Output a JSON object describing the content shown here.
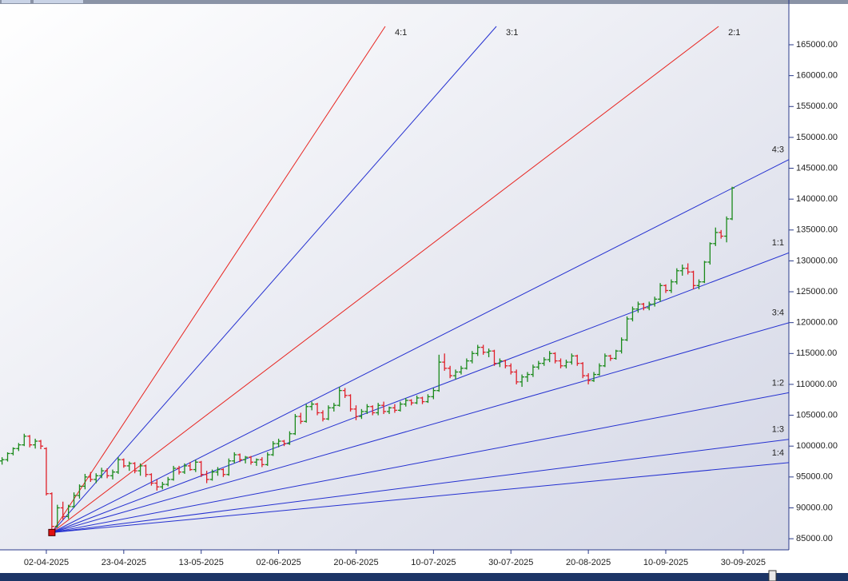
{
  "chart_data": {
    "type": "ohlc",
    "categories": [
      null,
      null,
      null,
      null,
      null,
      null,
      null,
      null,
      "02-04-2025",
      null,
      null,
      null,
      null,
      null,
      null,
      null,
      null,
      null,
      null,
      null,
      null,
      null,
      "23-04-2025",
      null,
      null,
      null,
      null,
      null,
      null,
      null,
      null,
      null,
      null,
      null,
      null,
      null,
      "13-05-2025",
      null,
      null,
      null,
      null,
      null,
      null,
      null,
      null,
      null,
      null,
      null,
      null,
      null,
      "02-06-2025",
      null,
      null,
      null,
      null,
      null,
      null,
      null,
      null,
      null,
      null,
      null,
      null,
      null,
      "20-06-2025",
      null,
      null,
      null,
      null,
      null,
      null,
      null,
      null,
      null,
      null,
      null,
      null,
      null,
      "10-07-2025",
      null,
      null,
      null,
      null,
      null,
      null,
      null,
      null,
      null,
      null,
      null,
      null,
      null,
      "30-07-2025",
      null,
      null,
      null,
      null,
      null,
      null,
      null,
      null,
      null,
      null,
      null,
      null,
      null,
      "20-08-2025",
      null,
      null,
      null,
      null,
      null,
      null,
      null,
      null,
      null,
      null,
      null,
      null,
      null,
      "10-09-2025",
      null,
      null,
      null,
      null,
      null,
      null,
      null,
      null,
      null,
      null,
      null,
      null,
      null,
      "30-09-2025"
    ],
    "ohlc": [
      [
        97600,
        98200,
        97000,
        97800
      ],
      [
        97800,
        99000,
        97500,
        98800
      ],
      [
        98800,
        99800,
        98500,
        99600
      ],
      [
        99600,
        100500,
        99200,
        100200
      ],
      [
        100200,
        102000,
        100000,
        101600
      ],
      [
        101600,
        101800,
        99800,
        100200
      ],
      [
        100200,
        101200,
        99600,
        100800
      ],
      [
        100800,
        101000,
        99500,
        100000
      ],
      [
        99600,
        99800,
        92000,
        92300
      ],
      [
        92300,
        92500,
        86000,
        87000
      ],
      [
        87000,
        90500,
        86800,
        90000
      ],
      [
        90000,
        91000,
        88000,
        88600
      ],
      [
        88600,
        90500,
        88200,
        90200
      ],
      [
        90200,
        92500,
        90000,
        92000
      ],
      [
        92000,
        93800,
        91500,
        93500
      ],
      [
        93500,
        95500,
        93000,
        95000
      ],
      [
        95000,
        95800,
        94200,
        94600
      ],
      [
        94600,
        95600,
        94000,
        95200
      ],
      [
        95200,
        96500,
        94800,
        96000
      ],
      [
        96000,
        96400,
        94800,
        95200
      ],
      [
        95200,
        96200,
        94600,
        95800
      ],
      [
        95800,
        98200,
        95500,
        97800
      ],
      [
        97800,
        98000,
        96500,
        96800
      ],
      [
        96800,
        97500,
        96000,
        97200
      ],
      [
        97200,
        97400,
        95600,
        96000
      ],
      [
        96000,
        97200,
        95200,
        96800
      ],
      [
        96800,
        97000,
        95000,
        95400
      ],
      [
        95400,
        95600,
        93600,
        94000
      ],
      [
        94000,
        94600,
        92800,
        93400
      ],
      [
        93400,
        94200,
        93000,
        93800
      ],
      [
        93800,
        95000,
        93500,
        94600
      ],
      [
        94600,
        96800,
        94400,
        96400
      ],
      [
        96400,
        96800,
        95400,
        95800
      ],
      [
        95800,
        97200,
        95500,
        96800
      ],
      [
        96800,
        97400,
        96000,
        96200
      ],
      [
        96200,
        97800,
        95800,
        97400
      ],
      [
        97400,
        97600,
        95000,
        95400
      ],
      [
        95400,
        96000,
        94000,
        94600
      ],
      [
        94600,
        96200,
        94400,
        95800
      ],
      [
        95800,
        96600,
        95200,
        96200
      ],
      [
        96200,
        96400,
        95000,
        95400
      ],
      [
        95400,
        98000,
        95200,
        97600
      ],
      [
        97600,
        99000,
        97200,
        98600
      ],
      [
        98600,
        98800,
        97400,
        97800
      ],
      [
        97800,
        98400,
        97200,
        98200
      ],
      [
        98200,
        98400,
        97000,
        97400
      ],
      [
        97400,
        98000,
        96800,
        97800
      ],
      [
        97800,
        98200,
        96600,
        97000
      ],
      [
        97000,
        99000,
        96800,
        98600
      ],
      [
        98600,
        100800,
        98400,
        100400
      ],
      [
        100400,
        101200,
        99800,
        100800
      ],
      [
        100800,
        101000,
        100000,
        100400
      ],
      [
        100400,
        102400,
        100200,
        102000
      ],
      [
        102000,
        105200,
        101800,
        104800
      ],
      [
        104800,
        105400,
        103600,
        104000
      ],
      [
        104000,
        106800,
        103800,
        106400
      ],
      [
        106400,
        107200,
        105800,
        106800
      ],
      [
        106800,
        107000,
        105000,
        105400
      ],
      [
        105400,
        105800,
        104000,
        104400
      ],
      [
        104400,
        106600,
        104200,
        106200
      ],
      [
        106200,
        107000,
        105600,
        106600
      ],
      [
        106600,
        109600,
        106400,
        109000
      ],
      [
        109000,
        109400,
        107800,
        108200
      ],
      [
        108200,
        108400,
        105600,
        106000
      ],
      [
        106000,
        106600,
        104200,
        104800
      ],
      [
        104800,
        106000,
        104400,
        105600
      ],
      [
        105600,
        106800,
        105200,
        106400
      ],
      [
        106400,
        106600,
        105000,
        105400
      ],
      [
        105400,
        107000,
        105000,
        106600
      ],
      [
        106600,
        107200,
        105200,
        105600
      ],
      [
        105600,
        106400,
        105200,
        106200
      ],
      [
        106200,
        106800,
        105400,
        105800
      ],
      [
        105800,
        107200,
        105600,
        106800
      ],
      [
        106800,
        107800,
        106400,
        107400
      ],
      [
        107400,
        107600,
        106600,
        107000
      ],
      [
        107000,
        108200,
        106800,
        107800
      ],
      [
        107800,
        108000,
        106800,
        107200
      ],
      [
        107200,
        108400,
        107000,
        108000
      ],
      [
        108000,
        109400,
        107600,
        109000
      ],
      [
        109000,
        114800,
        108800,
        113600
      ],
      [
        113600,
        115000,
        112200,
        112600
      ],
      [
        112600,
        113000,
        111000,
        111400
      ],
      [
        111400,
        112400,
        110800,
        112000
      ],
      [
        112000,
        113000,
        111600,
        112600
      ],
      [
        112600,
        114200,
        112400,
        113800
      ],
      [
        113800,
        115400,
        113400,
        115000
      ],
      [
        115000,
        116400,
        114600,
        116000
      ],
      [
        116000,
        116400,
        114800,
        115200
      ],
      [
        115200,
        115800,
        114400,
        115400
      ],
      [
        115400,
        115600,
        113000,
        113400
      ],
      [
        113400,
        114200,
        112800,
        113800
      ],
      [
        113800,
        114000,
        112600,
        113000
      ],
      [
        113000,
        113400,
        111600,
        112000
      ],
      [
        112000,
        112400,
        110000,
        110400
      ],
      [
        110400,
        111600,
        109600,
        111200
      ],
      [
        111200,
        112000,
        110400,
        111600
      ],
      [
        111600,
        113200,
        111200,
        112800
      ],
      [
        112800,
        113800,
        112400,
        113400
      ],
      [
        113400,
        114400,
        113000,
        114000
      ],
      [
        114000,
        115400,
        113600,
        115000
      ],
      [
        115000,
        115200,
        113400,
        113800
      ],
      [
        113800,
        114200,
        112600,
        113000
      ],
      [
        113000,
        114000,
        112600,
        113600
      ],
      [
        113600,
        115000,
        113200,
        114600
      ],
      [
        114600,
        114800,
        113000,
        113400
      ],
      [
        113400,
        113600,
        111000,
        111400
      ],
      [
        111400,
        111800,
        110000,
        110600
      ],
      [
        110600,
        112000,
        110400,
        111600
      ],
      [
        111600,
        113400,
        111400,
        113000
      ],
      [
        113000,
        115000,
        112800,
        114600
      ],
      [
        114600,
        114800,
        113800,
        114200
      ],
      [
        114200,
        115600,
        114000,
        115400
      ],
      [
        115400,
        117600,
        115000,
        117200
      ],
      [
        117200,
        121000,
        117000,
        120600
      ],
      [
        120600,
        122600,
        120200,
        122200
      ],
      [
        122200,
        123400,
        121600,
        123000
      ],
      [
        123000,
        123200,
        122000,
        122400
      ],
      [
        122400,
        123400,
        122000,
        123000
      ],
      [
        123000,
        124200,
        122600,
        123800
      ],
      [
        123800,
        126400,
        123400,
        126000
      ],
      [
        126000,
        126200,
        124800,
        125200
      ],
      [
        125200,
        127000,
        124800,
        126600
      ],
      [
        126600,
        128800,
        126200,
        128400
      ],
      [
        128400,
        129400,
        127600,
        128800
      ],
      [
        128800,
        129600,
        127800,
        128200
      ],
      [
        128200,
        128400,
        125400,
        126000
      ],
      [
        126000,
        127000,
        125400,
        126600
      ],
      [
        126600,
        130000,
        126400,
        129800
      ],
      [
        129800,
        133000,
        129400,
        132800
      ],
      [
        132800,
        135400,
        132400,
        134600
      ],
      [
        134600,
        135000,
        133600,
        134000
      ],
      [
        134000,
        137200,
        133000,
        136800
      ],
      [
        136800,
        142000,
        136600,
        141800
      ],
      null,
      null
    ],
    "up_color": "#1a8a1a",
    "down_color": "#e0202a",
    "ylim": [
      83200,
      172250
    ],
    "yticks": [
      {
        "value": 85000,
        "label": "85000.00"
      },
      {
        "value": 90000,
        "label": "90000.00"
      },
      {
        "value": 95000,
        "label": "95000.00"
      },
      {
        "value": 100000,
        "label": "100000.00"
      },
      {
        "value": 105000,
        "label": "105000.00"
      },
      {
        "value": 110000,
        "label": "110000.00"
      },
      {
        "value": 115000,
        "label": "115000.00"
      },
      {
        "value": 120000,
        "label": "120000.00"
      },
      {
        "value": 125000,
        "label": "125000.00"
      },
      {
        "value": 130000,
        "label": "130000.00"
      },
      {
        "value": 135000,
        "label": "135000.00"
      },
      {
        "value": 140000,
        "label": "140000.00"
      },
      {
        "value": 145000,
        "label": "145000.00"
      },
      {
        "value": 150000,
        "label": "150000.00"
      },
      {
        "value": 155000,
        "label": "155000.00"
      },
      {
        "value": 160000,
        "label": "160000.00"
      },
      {
        "value": 165000,
        "label": "165000.00"
      }
    ],
    "gann_fan": {
      "origin_index": 9,
      "origin_price": 86000,
      "unit": 340,
      "lines": [
        {
          "label": "4:1",
          "color": "#e8241f"
        },
        {
          "label": "3:1",
          "color": "#2430d0"
        },
        {
          "label": "2:1",
          "color": "#e8241f"
        },
        {
          "label": "4:3",
          "color": "#2430d0"
        },
        {
          "label": "1:1",
          "color": "#2430d0"
        },
        {
          "label": "3:4",
          "color": "#2430d0"
        },
        {
          "label": "1:2",
          "color": "#2430d0"
        },
        {
          "label": "1:3",
          "color": "#2430d0"
        },
        {
          "label": "1:4",
          "color": "#2430d0"
        }
      ]
    }
  }
}
